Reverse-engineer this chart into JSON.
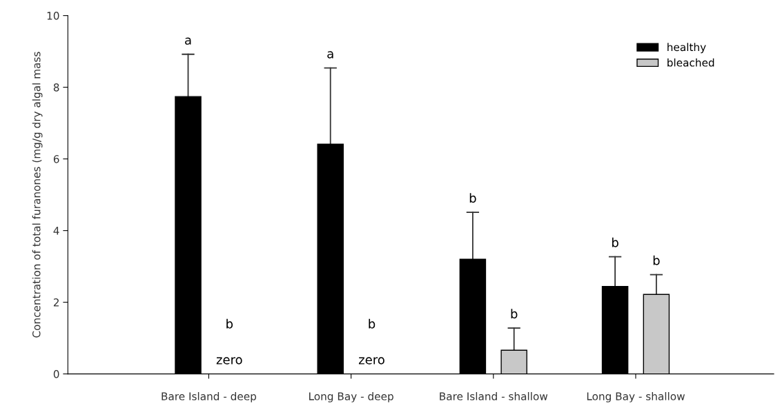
{
  "chart_data": {
    "type": "bar",
    "ylabel": "Concentration of total furanones (mg/g dry algal mass",
    "categories": [
      "Bare Island - deep",
      "Long Bay - deep",
      "Bare Island - shallow",
      "Long Bay - shallow"
    ],
    "series": [
      {
        "name": "healthy",
        "color": "#000000",
        "values": [
          7.74,
          6.41,
          3.2,
          2.44
        ],
        "errors": [
          [
            7.74,
            8.92
          ],
          [
            6.41,
            8.54
          ],
          [
            3.2,
            4.51
          ],
          [
            2.44,
            3.27
          ]
        ]
      },
      {
        "name": "bleached",
        "color": "#c8c8c8",
        "values": [
          0,
          0,
          0.66,
          2.22
        ],
        "errors": [
          null,
          null,
          [
            0.66,
            1.28
          ],
          [
            2.22,
            2.77
          ]
        ]
      }
    ],
    "annotations": [
      "a",
      "b",
      "zero",
      "a",
      "b",
      "zero",
      "b",
      "b",
      "b",
      "b"
    ],
    "ylim": [
      0,
      10
    ],
    "yticks": [
      0,
      2,
      4,
      6,
      8,
      10
    ],
    "grid": false,
    "legend": "top right"
  }
}
